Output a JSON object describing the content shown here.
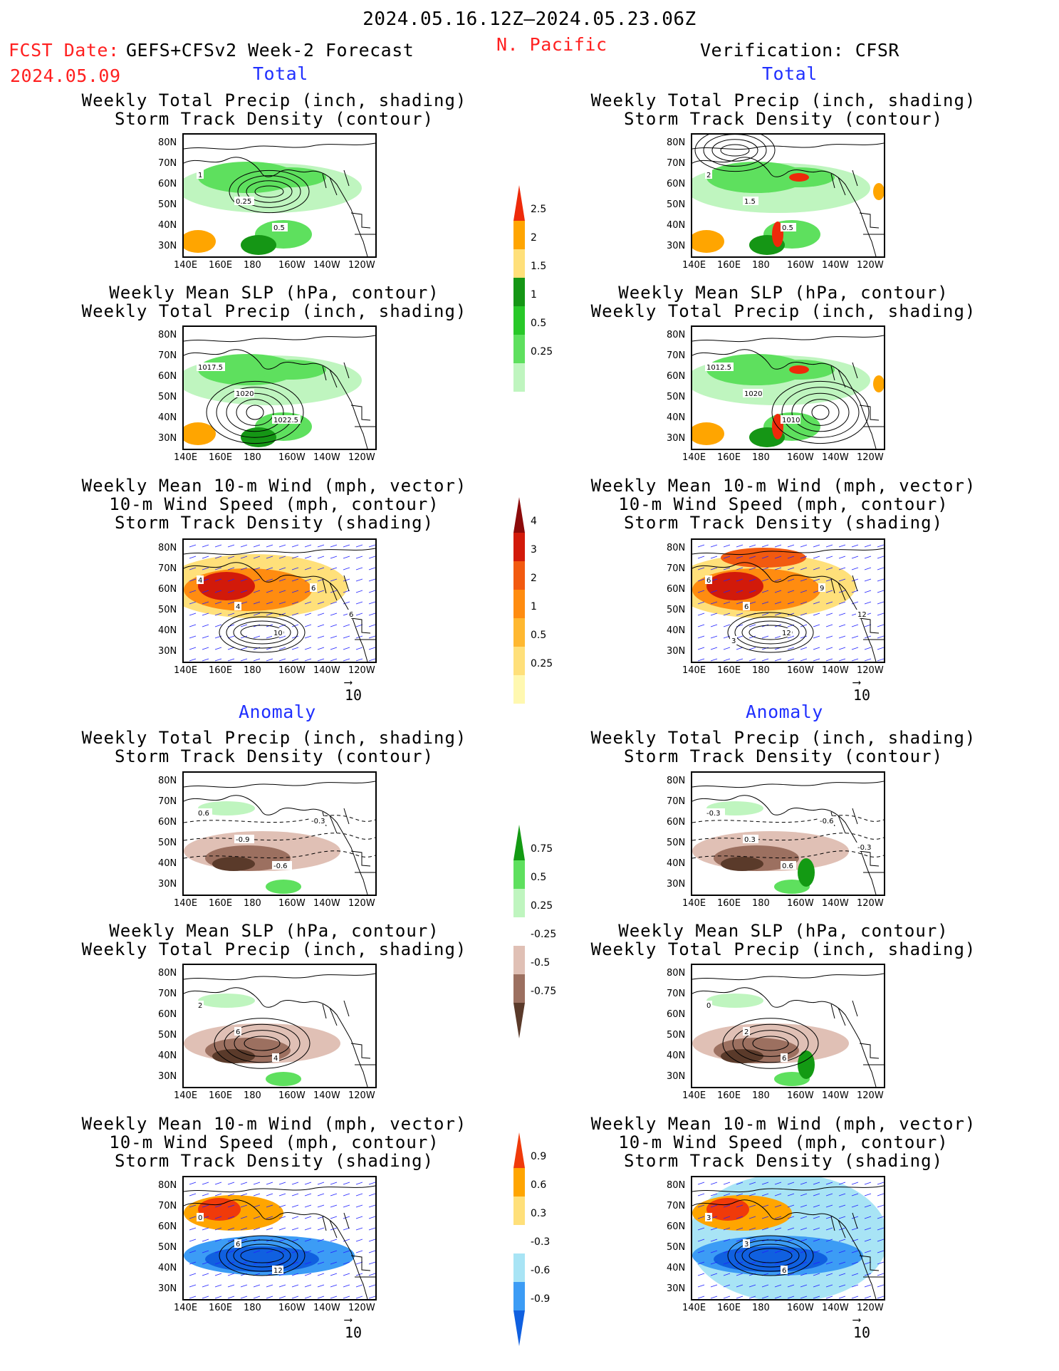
{
  "header": {
    "date_range": "2024.05.16.12Z–2024.05.23.06Z",
    "fcst_label": "FCST Date:",
    "fcst_model": "GEFS+CFSv2 Week-2 Forecast",
    "fcst_date": "2024.05.09",
    "region": "N. Pacific",
    "verification": "Verification: CFSR"
  },
  "sections": {
    "total": "Total",
    "anomaly": "Anomaly"
  },
  "titles": {
    "precip_storm": "Weekly Total Precip (inch, shading)\nStorm Track Density (contour)",
    "slp_precip": "Weekly Mean SLP (hPa, contour)\nWeekly Total Precip (inch, shading)",
    "wind_storm": "Weekly Mean 10-m Wind (mph, vector)\n10-m Wind Speed (mph, contour)\nStorm Track Density (shading)"
  },
  "axes": {
    "lat": [
      "80N",
      "70N",
      "60N",
      "50N",
      "40N",
      "30N"
    ],
    "lon": [
      "140E",
      "160E",
      "180",
      "160W",
      "140W",
      "120W"
    ],
    "vector_ref": "10"
  },
  "contour_labels": {
    "l_precip_total": [
      "1",
      "0.25",
      "0.5"
    ],
    "r_precip_total": [
      "2",
      "1.5",
      "0.5"
    ],
    "l_slp_total": [
      "1017.5",
      "1020",
      "1022.5"
    ],
    "r_slp_total": [
      "1012.5",
      "1020",
      "1010"
    ],
    "l_wind_total": [
      "4",
      "4",
      "10",
      "6",
      "6"
    ],
    "r_wind_total": [
      "6",
      "6",
      "12",
      "9",
      "12",
      "3"
    ],
    "l_precip_anom": [
      "0.6",
      "-0.9",
      "-0.6",
      "-0.3"
    ],
    "r_precip_anom": [
      "-0.3",
      "0.3",
      "0.6",
      "-0.6",
      "-0.3"
    ],
    "l_slp_anom": [
      "2",
      "6",
      "4"
    ],
    "r_slp_anom": [
      "0",
      "2",
      "6"
    ],
    "l_wind_anom": [
      "0",
      "6",
      "12"
    ],
    "r_wind_anom": [
      "3",
      "3",
      "6"
    ]
  },
  "colorbars": {
    "precip_total": [
      "2.5",
      "2",
      "1.5",
      "1",
      "0.5",
      "0.25"
    ],
    "storm_total": [
      "4",
      "3",
      "2",
      "1",
      "0.5",
      "0.25"
    ],
    "precip_anom": [
      "0.75",
      "0.5",
      "0.25",
      "-0.25",
      "-0.5",
      "-0.75"
    ],
    "storm_anom": [
      "0.9",
      "0.6",
      "0.3",
      "-0.3",
      "-0.6",
      "-0.9"
    ]
  },
  "colors": {
    "precip": [
      "#bff5bf",
      "#5ee05e",
      "#28c828",
      "#159615",
      "#ffe07a",
      "#ffa500",
      "#ee2a0a"
    ],
    "storm": [
      "#fff8b0",
      "#ffe07a",
      "#ffb830",
      "#ff8c10",
      "#f25a10",
      "#d21a0a",
      "#8c0a0a"
    ],
    "anom_precip": [
      "#5a3a2a",
      "#9c7060",
      "#e0c0b5",
      "#ffffff",
      "#bff5bf",
      "#5ee05e",
      "#139a13"
    ],
    "anom_storm": [
      "#1060e0",
      "#3c9cf5",
      "#a8e4f5",
      "#ffffff",
      "#ffe07a",
      "#ffa500",
      "#f03a0a"
    ],
    "wind_contour": "#2020ff",
    "title_red": "#ff2020",
    "title_blue": "#2030ff"
  }
}
